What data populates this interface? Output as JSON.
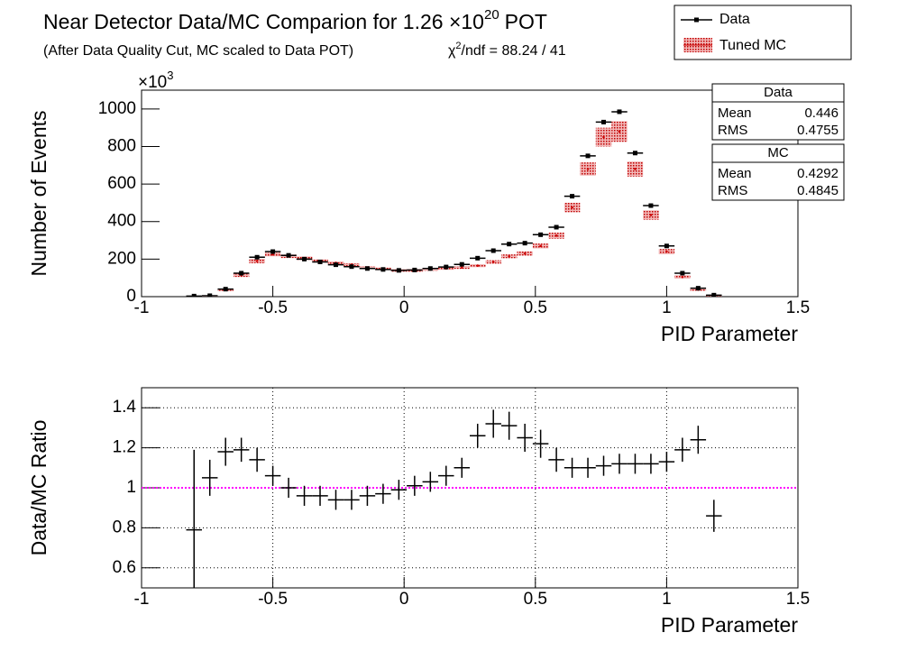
{
  "chart_data": [
    {
      "type": "histogram",
      "title": {
        "text": "Near Detector Data/MC Comparion for 1.26 ×10",
        "superscript": "20",
        "suffix": "POT"
      },
      "subtitle": "(After Data Quality Cut, MC scaled to Data POT)",
      "chi2": {
        "symbol": "χ",
        "superscript": "2",
        "text": "/ndf = 88.24 / 41"
      },
      "y_multiplier": {
        "base": "×10",
        "exponent": "3"
      },
      "xlabel": "PID Parameter",
      "ylabel": "Number of Events",
      "x": [
        -0.8,
        -0.74,
        -0.68,
        -0.62,
        -0.56,
        -0.5,
        -0.44,
        -0.38,
        -0.32,
        -0.26,
        -0.2,
        -0.14,
        -0.08,
        -0.02,
        0.04,
        0.1,
        0.16,
        0.22,
        0.28,
        0.34,
        0.4,
        0.46,
        0.52,
        0.58,
        0.64,
        0.7,
        0.76,
        0.82,
        0.88,
        0.94,
        1.0,
        1.06,
        1.12,
        1.18
      ],
      "xlim": [
        -1,
        1.5
      ],
      "xticks": [
        -1,
        -0.5,
        0,
        0.5,
        1,
        1.5
      ],
      "ylim": [
        0,
        1100
      ],
      "yticks": [
        0,
        200,
        400,
        600,
        800,
        1000
      ],
      "legend": "top-right",
      "series": [
        {
          "name": "Data",
          "color": "#000000",
          "values": [
            3,
            5,
            40,
            125,
            210,
            240,
            220,
            200,
            185,
            170,
            160,
            150,
            145,
            140,
            142,
            150,
            158,
            172,
            205,
            245,
            280,
            285,
            330,
            370,
            535,
            750,
            930,
            985,
            765,
            485,
            270,
            125,
            45,
            8
          ]
        },
        {
          "name": "Tuned MC",
          "color": "#cc0000",
          "values": [
            3,
            5,
            35,
            115,
            190,
            225,
            215,
            205,
            190,
            180,
            170,
            155,
            148,
            140,
            140,
            145,
            150,
            155,
            165,
            185,
            215,
            230,
            270,
            325,
            475,
            680,
            850,
            880,
            680,
            435,
            240,
            105,
            37,
            9
          ],
          "errors": [
            1,
            1,
            4,
            10,
            12,
            10,
            9,
            9,
            8,
            8,
            8,
            7,
            7,
            7,
            7,
            7,
            7,
            7,
            8,
            9,
            10,
            11,
            13,
            16,
            25,
            35,
            50,
            55,
            40,
            25,
            14,
            9,
            4,
            2
          ]
        }
      ],
      "stats": [
        {
          "name": "Data",
          "color": "#000000",
          "labels": [
            "Mean",
            "RMS"
          ],
          "values": [
            0.446,
            0.4755
          ]
        },
        {
          "name": "MC",
          "color": "#ff0000",
          "labels": [
            "Mean",
            "RMS"
          ],
          "values": [
            0.4292,
            0.4845
          ]
        }
      ]
    },
    {
      "type": "ratio",
      "xlabel": "PID Parameter",
      "ylabel": "Data/MC Ratio",
      "x": [
        -0.8,
        -0.74,
        -0.68,
        -0.62,
        -0.56,
        -0.5,
        -0.44,
        -0.38,
        -0.32,
        -0.26,
        -0.2,
        -0.14,
        -0.08,
        -0.02,
        0.04,
        0.1,
        0.16,
        0.22,
        0.28,
        0.34,
        0.4,
        0.46,
        0.52,
        0.58,
        0.64,
        0.7,
        0.76,
        0.82,
        0.88,
        0.94,
        1.0,
        1.06,
        1.12,
        1.18
      ],
      "values": [
        0.79,
        1.05,
        1.18,
        1.19,
        1.14,
        1.06,
        1.0,
        0.96,
        0.96,
        0.94,
        0.94,
        0.96,
        0.97,
        0.99,
        1.01,
        1.03,
        1.06,
        1.1,
        1.26,
        1.32,
        1.31,
        1.25,
        1.22,
        1.14,
        1.1,
        1.1,
        1.11,
        1.12,
        1.12,
        1.12,
        1.13,
        1.19,
        1.24,
        0.86
      ],
      "errors": [
        0.4,
        0.09,
        0.07,
        0.06,
        0.06,
        0.05,
        0.05,
        0.05,
        0.05,
        0.05,
        0.05,
        0.05,
        0.05,
        0.05,
        0.05,
        0.05,
        0.05,
        0.05,
        0.06,
        0.07,
        0.07,
        0.07,
        0.07,
        0.06,
        0.05,
        0.05,
        0.05,
        0.05,
        0.05,
        0.05,
        0.05,
        0.06,
        0.07,
        0.08
      ],
      "color": "#000000",
      "xlim": [
        -1,
        1.5
      ],
      "xticks": [
        -1,
        -0.5,
        0,
        0.5,
        1,
        1.5
      ],
      "ylim": [
        0.5,
        1.5
      ],
      "yticks": [
        0.6,
        0.8,
        1,
        1.2,
        1.4
      ],
      "grid": true,
      "reference_line": {
        "value": 1,
        "color": "#ff00ff"
      }
    }
  ]
}
